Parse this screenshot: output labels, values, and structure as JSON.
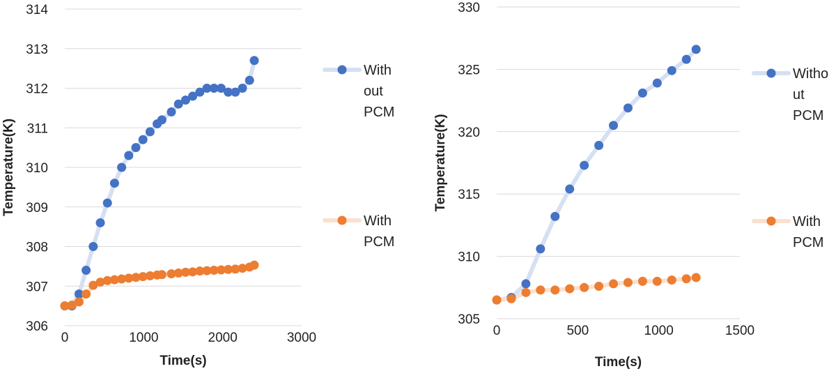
{
  "chart_data": [
    {
      "type": "line",
      "xlabel": "Time(s)",
      "ylabel": "Temperature(K)",
      "xlim": [
        0,
        3000
      ],
      "ylim": [
        306,
        314
      ],
      "xticks": [
        0,
        1000,
        2000,
        3000
      ],
      "yticks": [
        306,
        307,
        308,
        309,
        310,
        311,
        312,
        313,
        314
      ],
      "grid": "horizontal",
      "legend_position": "right",
      "series": [
        {
          "name": "Without PCM",
          "legend_lines": [
            "With",
            "out",
            "PCM"
          ],
          "color": "#4472C4",
          "line_color": "#D6E0F2",
          "x": [
            0,
            90,
            180,
            270,
            360,
            450,
            540,
            630,
            720,
            810,
            900,
            990,
            1080,
            1170,
            1230,
            1350,
            1440,
            1530,
            1620,
            1710,
            1800,
            1890,
            1980,
            2070,
            2160,
            2250,
            2340,
            2400
          ],
          "y": [
            306.5,
            306.5,
            306.8,
            307.4,
            308.0,
            308.6,
            309.1,
            309.6,
            310.0,
            310.3,
            310.5,
            310.7,
            310.9,
            311.1,
            311.2,
            311.4,
            311.6,
            311.7,
            311.8,
            311.9,
            312.0,
            312.0,
            312.0,
            311.9,
            311.9,
            312.0,
            312.2,
            312.7
          ]
        },
        {
          "name": "With PCM",
          "legend_lines": [
            "With",
            "PCM"
          ],
          "color": "#ED7D31",
          "line_color": "#FBE0CF",
          "x": [
            0,
            90,
            180,
            270,
            360,
            450,
            540,
            630,
            720,
            810,
            900,
            990,
            1080,
            1170,
            1230,
            1350,
            1440,
            1530,
            1620,
            1710,
            1800,
            1890,
            1980,
            2070,
            2160,
            2250,
            2340,
            2400
          ],
          "y": [
            306.5,
            306.52,
            306.6,
            306.8,
            307.02,
            307.1,
            307.14,
            307.16,
            307.18,
            307.2,
            307.22,
            307.24,
            307.26,
            307.28,
            307.29,
            307.31,
            307.33,
            307.35,
            307.36,
            307.38,
            307.39,
            307.4,
            307.41,
            307.42,
            307.43,
            307.45,
            307.48,
            307.53
          ]
        }
      ]
    },
    {
      "type": "line",
      "xlabel": "Time(s)",
      "ylabel": "Temperature(K)",
      "xlim": [
        0,
        1500
      ],
      "ylim": [
        305,
        330
      ],
      "xticks": [
        0,
        500,
        1000,
        1500
      ],
      "yticks": [
        305,
        310,
        315,
        320,
        325,
        330
      ],
      "grid": "horizontal",
      "legend_position": "right",
      "series": [
        {
          "name": "Without PCM",
          "legend_lines": [
            "Witho",
            "ut",
            "PCM"
          ],
          "color": "#4472C4",
          "line_color": "#D6E0F2",
          "x": [
            0,
            90,
            180,
            270,
            360,
            450,
            540,
            630,
            720,
            810,
            900,
            990,
            1080,
            1170,
            1230
          ],
          "y": [
            306.5,
            306.7,
            307.8,
            310.6,
            313.2,
            315.4,
            317.3,
            318.9,
            320.5,
            321.9,
            323.1,
            323.9,
            324.9,
            325.8,
            326.6
          ]
        },
        {
          "name": "With PCM",
          "legend_lines": [
            "With",
            "PCM"
          ],
          "color": "#ED7D31",
          "line_color": "#FBE0CF",
          "x": [
            0,
            90,
            180,
            270,
            360,
            450,
            540,
            630,
            720,
            810,
            900,
            990,
            1080,
            1170,
            1230
          ],
          "y": [
            306.5,
            306.6,
            307.1,
            307.3,
            307.3,
            307.4,
            307.5,
            307.6,
            307.8,
            307.9,
            308.0,
            308.0,
            308.1,
            308.2,
            308.3
          ]
        }
      ]
    }
  ]
}
